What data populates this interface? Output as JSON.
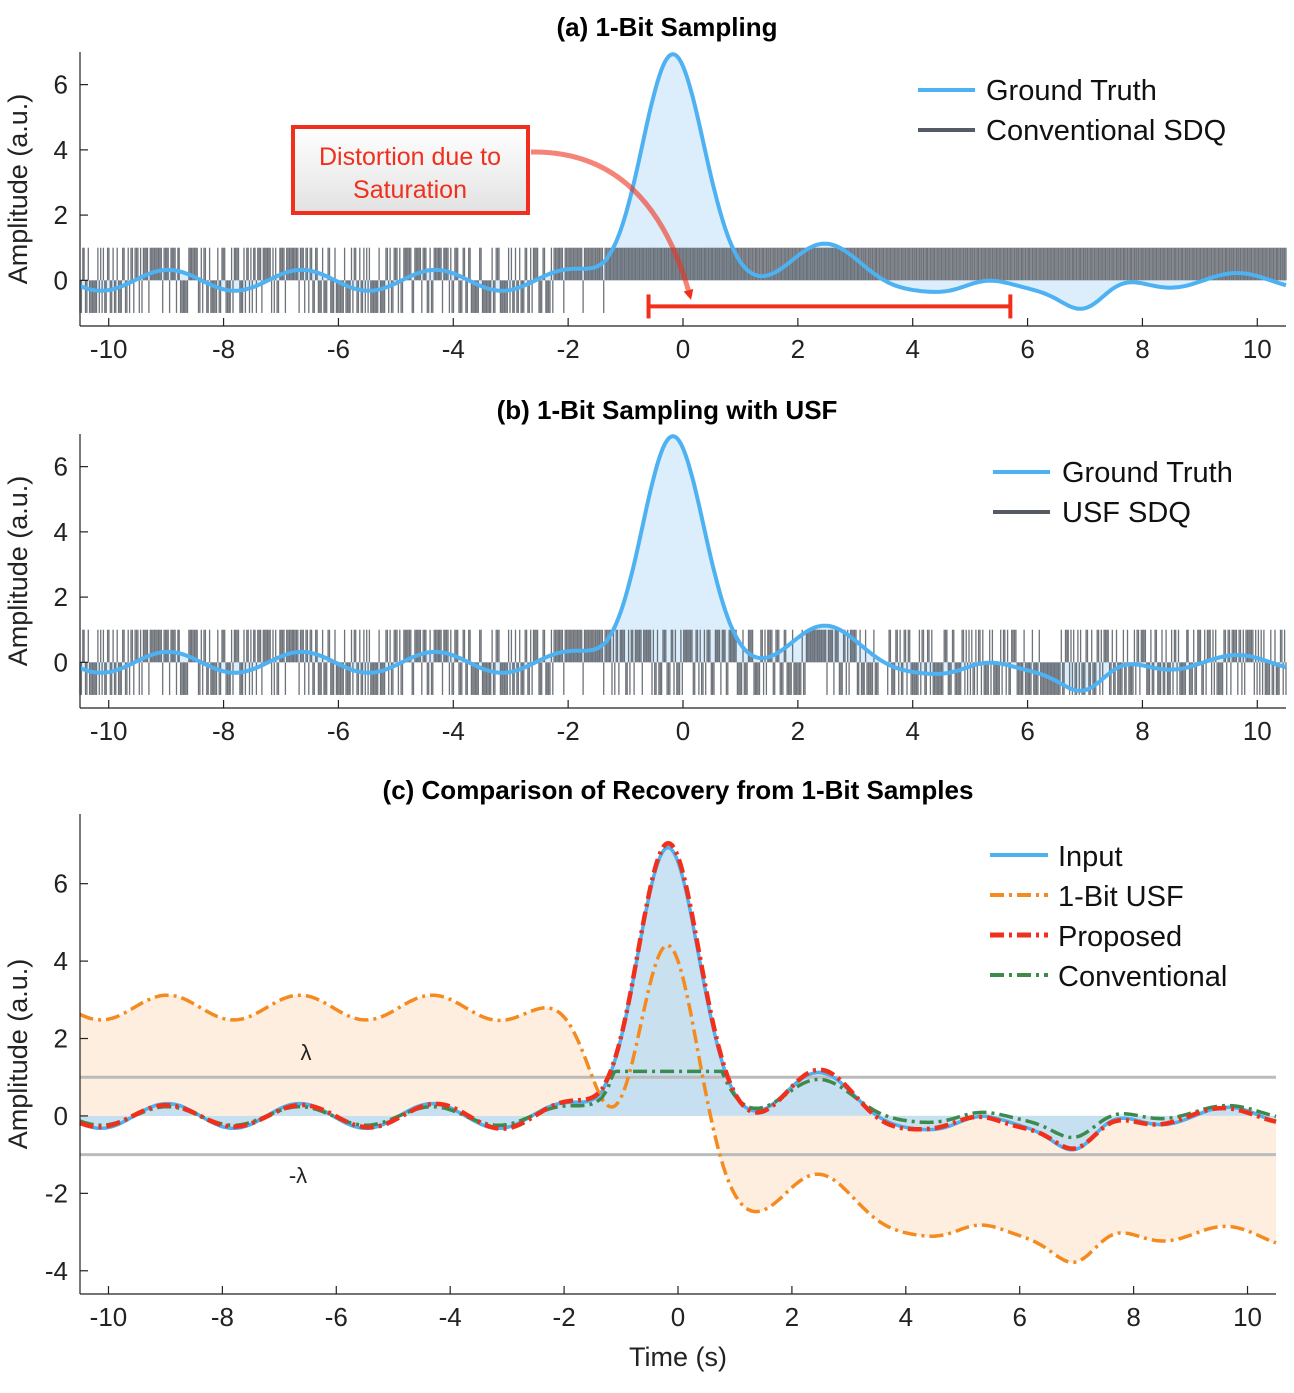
{
  "chart_data": [
    {
      "type": "line",
      "title": "(a) 1-Bit Sampling",
      "xlabel": "",
      "ylabel": "Amplitude (a.u.)",
      "xlim": [
        -10.5,
        10.5
      ],
      "ylim": [
        -1.4,
        7
      ],
      "xticks": [
        "-10",
        "-8",
        "-6",
        "-4",
        "-2",
        "0",
        "2",
        "4",
        "6",
        "8",
        "10"
      ],
      "yticks": [
        "0",
        "2",
        "4",
        "6"
      ],
      "legend": {
        "position": "top-right",
        "entries": [
          "Ground Truth",
          "Conventional SDQ"
        ]
      },
      "series": [
        {
          "name": "Ground Truth",
          "color": "#4DB1F2",
          "style": "solid",
          "fill": "#DCEEFB"
        },
        {
          "name": "Conventional SDQ",
          "color": "#555B63",
          "style": "solid",
          "values": "1-bit samples in {-1, +1}; saturates at +1 for t > -1.3"
        }
      ],
      "annotation": {
        "text_lines": [
          "Distortion due to",
          "Saturation"
        ],
        "color": "#F0301C",
        "interval": [
          -0.6,
          5.7
        ],
        "arrow_target": [
          0.1,
          -0.6
        ]
      }
    },
    {
      "type": "line",
      "title": "(b) 1-Bit Sampling with USF",
      "xlabel": "",
      "ylabel": "Amplitude (a.u.)",
      "xlim": [
        -10.5,
        10.5
      ],
      "ylim": [
        -1.4,
        7
      ],
      "xticks": [
        "-10",
        "-8",
        "-6",
        "-4",
        "-2",
        "0",
        "2",
        "4",
        "6",
        "8",
        "10"
      ],
      "yticks": [
        "0",
        "2",
        "4",
        "6"
      ],
      "legend": {
        "position": "top-right",
        "entries": [
          "Ground Truth",
          "USF SDQ"
        ]
      },
      "series": [
        {
          "name": "Ground Truth",
          "color": "#4DB1F2",
          "style": "solid",
          "fill": "#DCEEFB"
        },
        {
          "name": "USF SDQ",
          "color": "#555B63",
          "style": "solid",
          "values": "1-bit samples in {-1, +1} of the folded signal"
        }
      ]
    },
    {
      "type": "line",
      "title": "(c) Comparison of Recovery from 1-Bit Samples",
      "xlabel": "Time (s)",
      "ylabel": "Amplitude (a.u.)",
      "xlim": [
        -10.5,
        10.5
      ],
      "ylim": [
        -4.6,
        7.8
      ],
      "xticks": [
        "-10",
        "-8",
        "-6",
        "-4",
        "-2",
        "0",
        "2",
        "4",
        "6",
        "8",
        "10"
      ],
      "yticks": [
        "-4",
        "-2",
        "0",
        "2",
        "4",
        "6"
      ],
      "threshold": {
        "value": 1,
        "labels": [
          "λ",
          "-λ"
        ],
        "color": "#BBBBBB"
      },
      "legend": {
        "position": "top-right",
        "entries": [
          "Input",
          "1-Bit USF",
          "Proposed",
          "Conventional"
        ]
      },
      "series": [
        {
          "name": "Input",
          "color": "#4DB1F2",
          "style": "solid",
          "fill": "#BFDDF2"
        },
        {
          "name": "1-Bit USF",
          "color": "#F58A1F",
          "style": "dashdot",
          "fill": "#FDEEDF"
        },
        {
          "name": "Proposed",
          "color": "#F0301C",
          "style": "dashdot"
        },
        {
          "name": "Conventional",
          "color": "#3C8A4D",
          "style": "dashdot",
          "fill": "#E6F2EA"
        }
      ]
    }
  ]
}
